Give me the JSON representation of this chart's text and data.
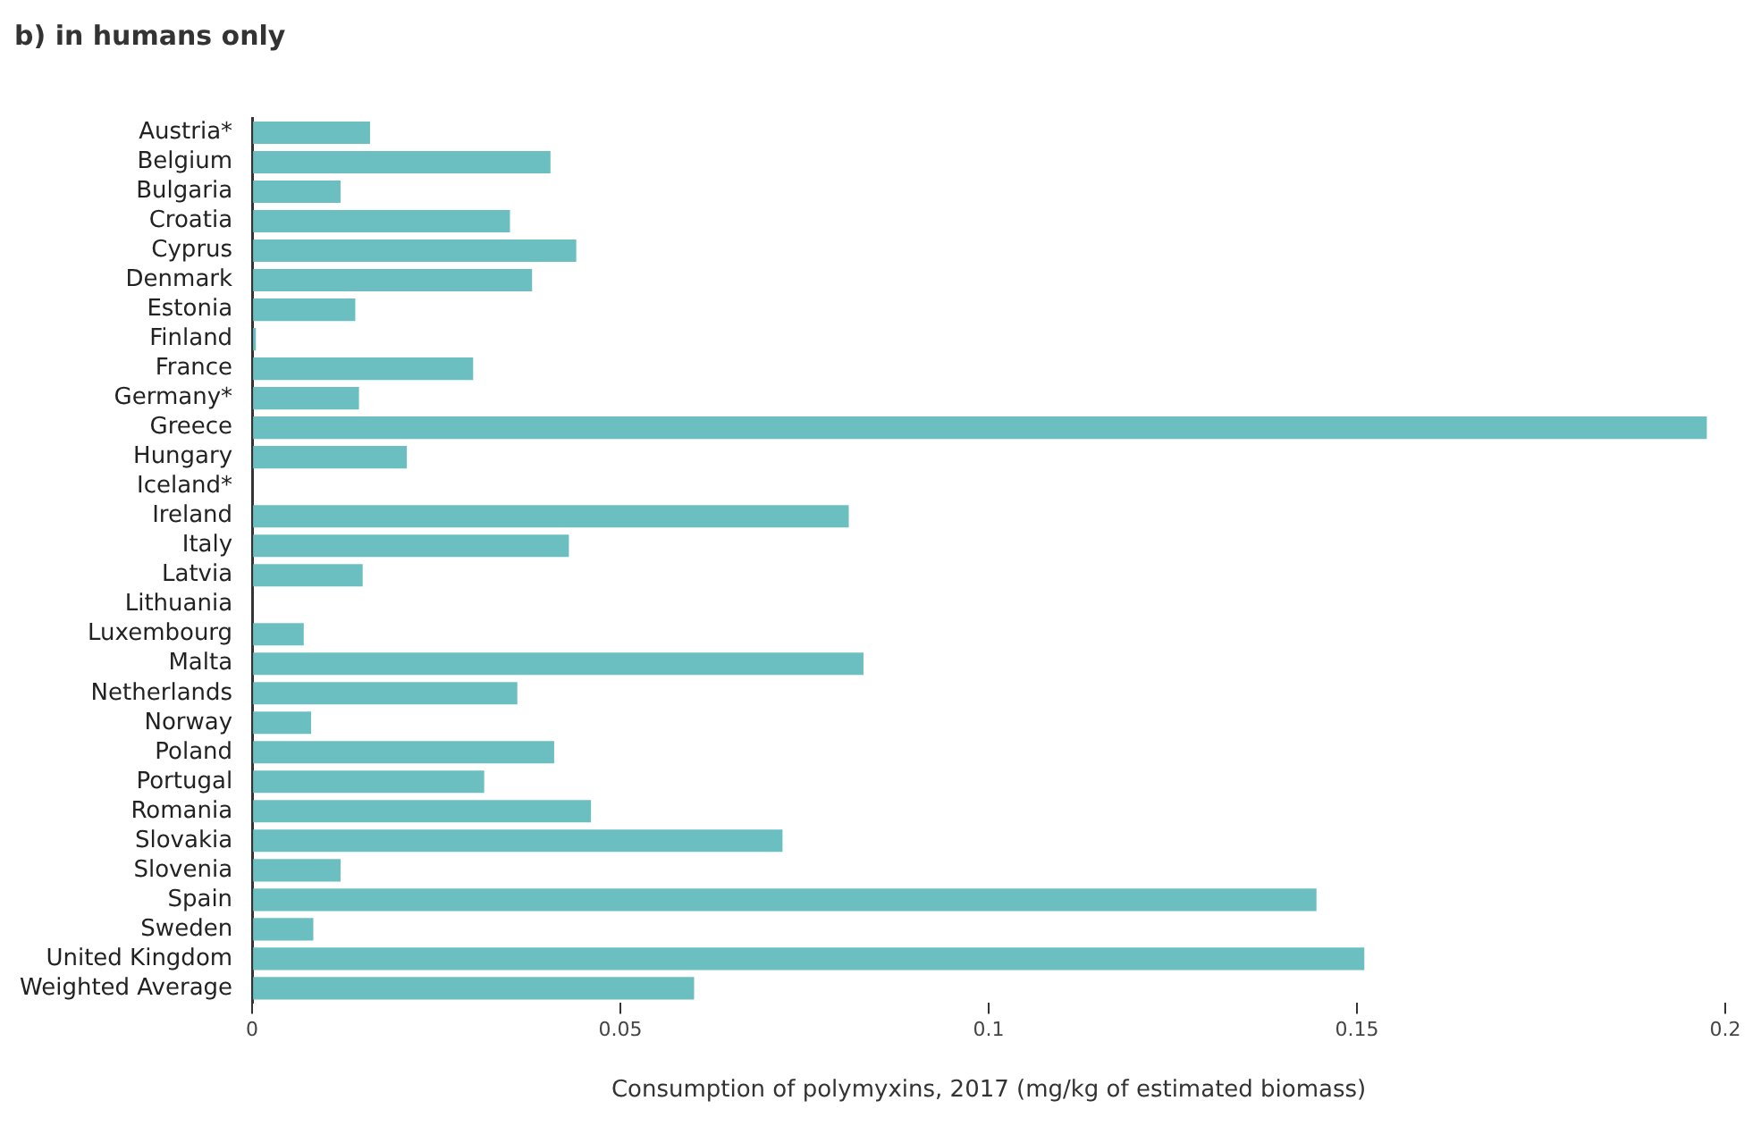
{
  "chart_data": {
    "type": "bar",
    "orientation": "horizontal",
    "title": "b) in humans only",
    "xlabel": "Consumption of polymyxins, 2017 (mg/kg of estimated biomass)",
    "categories": [
      "Austria*",
      "Belgium",
      "Bulgaria",
      "Croatia",
      "Cyprus",
      "Denmark",
      "Estonia",
      "Finland",
      "France",
      "Germany*",
      "Greece",
      "Hungary",
      "Iceland*",
      "Ireland",
      "Italy",
      "Latvia",
      "Lithuania",
      "Luxembourg",
      "Malta",
      "Netherlands",
      "Norway",
      "Poland",
      "Portugal",
      "Romania",
      "Slovakia",
      "Slovenia",
      "Spain",
      "Sweden",
      "United Kingdom",
      "Weighted Average"
    ],
    "values": [
      0.016,
      0.0405,
      0.012,
      0.035,
      0.044,
      0.038,
      0.014,
      0.0005,
      0.03,
      0.0145,
      0.1975,
      0.021,
      null,
      0.081,
      0.043,
      0.015,
      null,
      0.007,
      0.083,
      0.036,
      0.008,
      0.041,
      0.0315,
      0.046,
      0.072,
      0.012,
      0.1445,
      0.0083,
      0.151,
      0.06
    ],
    "color": "#6cbfc0",
    "xlim": [
      0,
      0.2
    ],
    "xticks": [
      0,
      0.05,
      0.1,
      0.15,
      0.2
    ],
    "grid": false,
    "legend": false
  }
}
